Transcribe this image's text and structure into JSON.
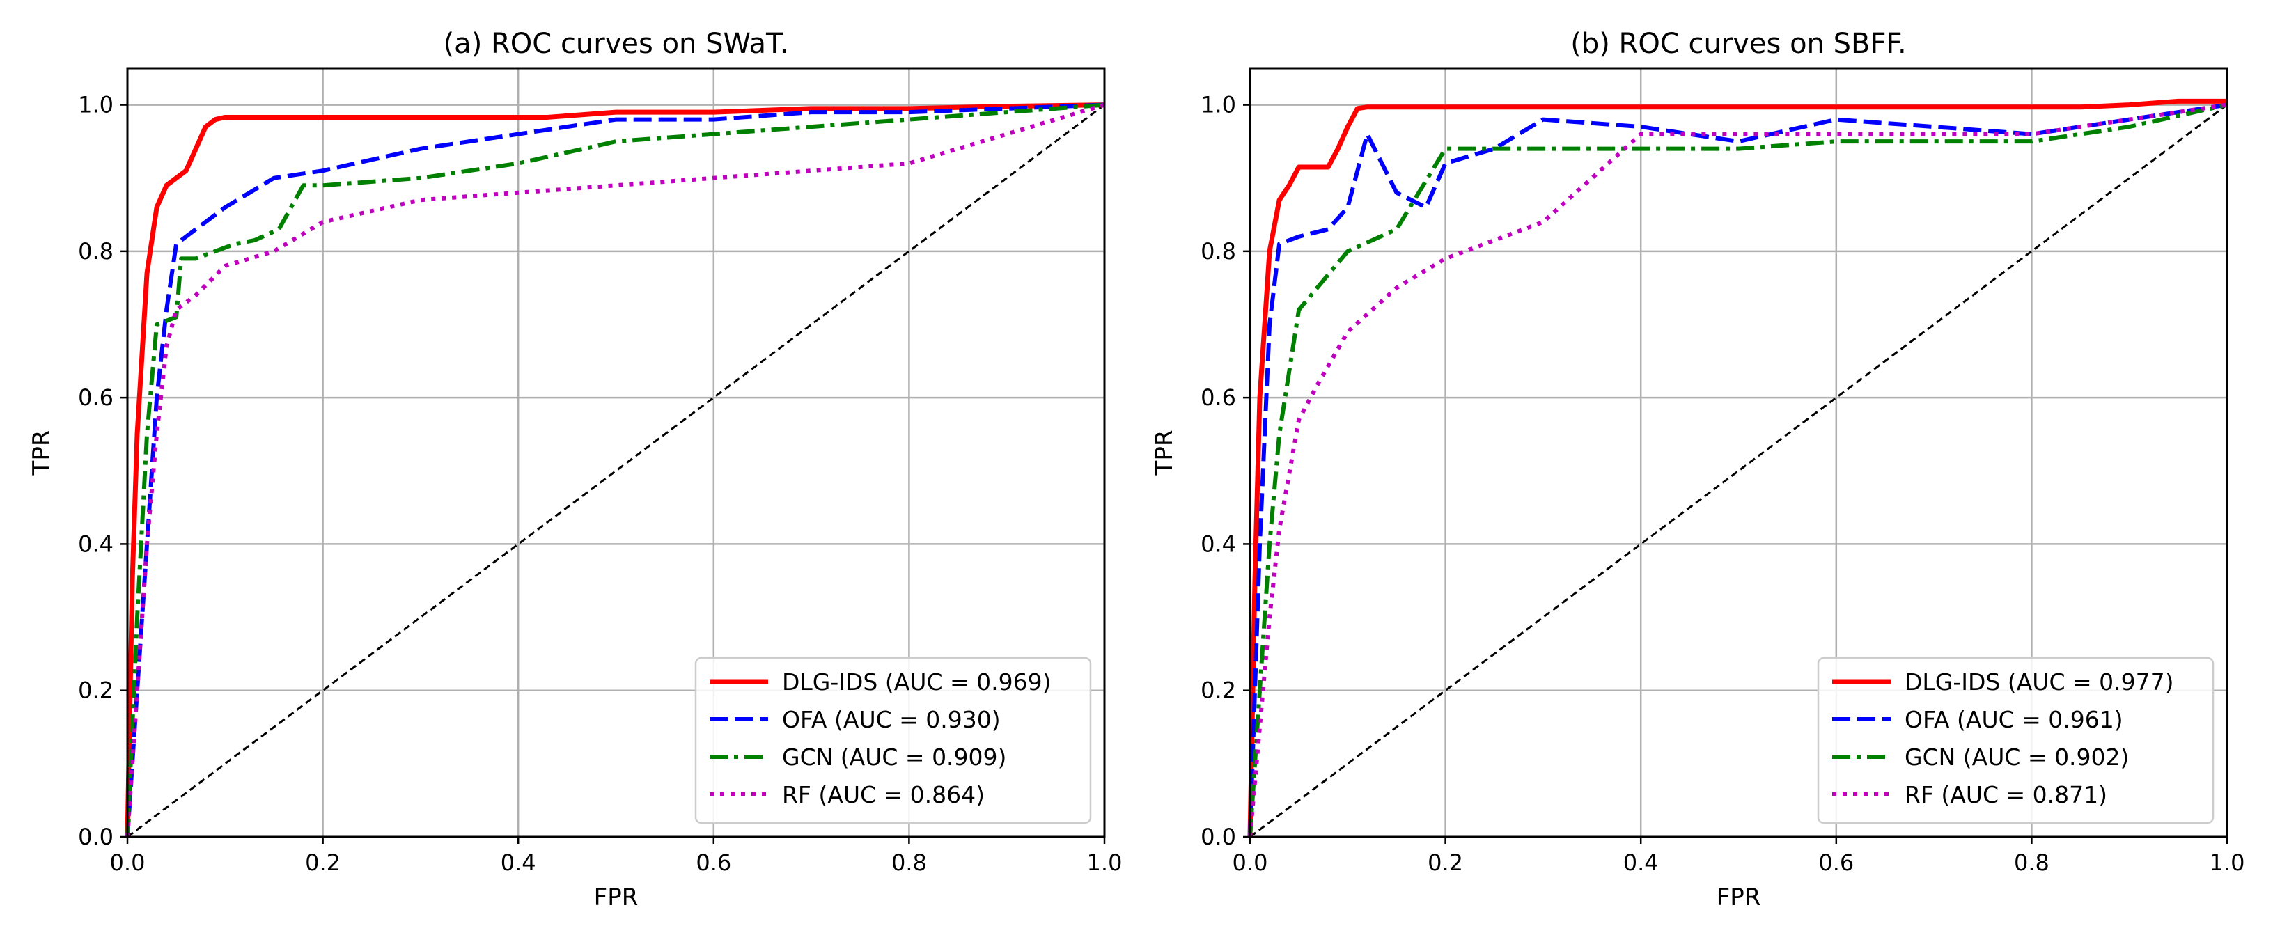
{
  "chart_data": [
    {
      "type": "line",
      "title": "(a) ROC curves on SWaT.",
      "xlabel": "FPR",
      "ylabel": "TPR",
      "xlim": [
        0,
        1
      ],
      "ylim": [
        0,
        1.05
      ],
      "xticks": [
        "0.0",
        "0.2",
        "0.4",
        "0.6",
        "0.8",
        "1.0"
      ],
      "yticks": [
        "0.0",
        "0.2",
        "0.4",
        "0.6",
        "0.8",
        "1.0"
      ],
      "grid": true,
      "legend_position": "lower-right",
      "diagonal": {
        "x": [
          0,
          1
        ],
        "y": [
          0,
          1
        ],
        "color": "#000000",
        "style": "dashed"
      },
      "series": [
        {
          "name": "DLG-IDS (AUC = 0.969)",
          "color": "#ff0000",
          "style": "solid",
          "x": [
            0,
            0.005,
            0.01,
            0.02,
            0.03,
            0.04,
            0.05,
            0.06,
            0.07,
            0.08,
            0.09,
            0.1,
            0.12,
            0.2,
            0.3,
            0.43,
            0.5,
            0.6,
            0.7,
            0.8,
            0.9,
            1.0
          ],
          "y": [
            0,
            0.35,
            0.55,
            0.77,
            0.86,
            0.89,
            0.9,
            0.91,
            0.94,
            0.97,
            0.98,
            0.983,
            0.983,
            0.983,
            0.983,
            0.983,
            0.99,
            0.99,
            0.995,
            0.995,
            0.998,
            1.0
          ]
        },
        {
          "name": "OFA (AUC = 0.930)",
          "color": "#0000ff",
          "style": "dashed",
          "x": [
            0,
            0.01,
            0.02,
            0.03,
            0.04,
            0.05,
            0.08,
            0.1,
            0.15,
            0.2,
            0.3,
            0.4,
            0.5,
            0.6,
            0.7,
            0.8,
            0.9,
            1.0
          ],
          "y": [
            0,
            0.2,
            0.4,
            0.6,
            0.72,
            0.81,
            0.84,
            0.86,
            0.9,
            0.91,
            0.94,
            0.96,
            0.98,
            0.98,
            0.99,
            0.99,
            0.995,
            1.0
          ]
        },
        {
          "name": "GCN (AUC = 0.909)",
          "color": "#008000",
          "style": "dashdot",
          "x": [
            0,
            0.01,
            0.02,
            0.03,
            0.05,
            0.055,
            0.07,
            0.09,
            0.11,
            0.13,
            0.155,
            0.18,
            0.2,
            0.3,
            0.4,
            0.5,
            0.6,
            0.7,
            0.8,
            0.9,
            0.95,
            1.0
          ],
          "y": [
            0,
            0.3,
            0.55,
            0.7,
            0.71,
            0.79,
            0.79,
            0.8,
            0.81,
            0.815,
            0.83,
            0.89,
            0.89,
            0.9,
            0.92,
            0.95,
            0.96,
            0.97,
            0.98,
            0.99,
            0.995,
            1.0
          ]
        },
        {
          "name": "RF (AUC = 0.864)",
          "color": "#bf00bf",
          "style": "dotted",
          "x": [
            0,
            0.01,
            0.02,
            0.03,
            0.04,
            0.05,
            0.07,
            0.1,
            0.15,
            0.2,
            0.3,
            0.4,
            0.5,
            0.6,
            0.7,
            0.8,
            0.9,
            1.0
          ],
          "y": [
            0,
            0.2,
            0.4,
            0.55,
            0.67,
            0.72,
            0.74,
            0.78,
            0.8,
            0.84,
            0.87,
            0.88,
            0.89,
            0.9,
            0.91,
            0.92,
            0.96,
            1.0
          ]
        }
      ]
    },
    {
      "type": "line",
      "title": "(b) ROC curves on SBFF.",
      "xlabel": "FPR",
      "ylabel": "TPR",
      "xlim": [
        0,
        1
      ],
      "ylim": [
        0,
        1.05
      ],
      "xticks": [
        "0.0",
        "0.2",
        "0.4",
        "0.6",
        "0.8",
        "1.0"
      ],
      "yticks": [
        "0.0",
        "0.2",
        "0.4",
        "0.6",
        "0.8",
        "1.0"
      ],
      "grid": true,
      "legend_position": "lower-right",
      "diagonal": {
        "x": [
          0,
          1
        ],
        "y": [
          0,
          1
        ],
        "color": "#000000",
        "style": "dashed"
      },
      "series": [
        {
          "name": "DLG-IDS (AUC = 0.977)",
          "color": "#ff0000",
          "style": "solid",
          "x": [
            0,
            0.005,
            0.01,
            0.02,
            0.03,
            0.04,
            0.05,
            0.07,
            0.08,
            0.09,
            0.1,
            0.11,
            0.12,
            0.2,
            0.4,
            0.6,
            0.8,
            0.85,
            0.9,
            0.95,
            1.0
          ],
          "y": [
            0,
            0.35,
            0.6,
            0.8,
            0.87,
            0.89,
            0.915,
            0.915,
            0.915,
            0.94,
            0.97,
            0.995,
            0.997,
            0.997,
            0.997,
            0.997,
            0.997,
            0.997,
            1.0,
            1.005,
            1.005
          ]
        },
        {
          "name": "OFA (AUC = 0.961)",
          "color": "#0000ff",
          "style": "dashed",
          "x": [
            0,
            0.01,
            0.02,
            0.03,
            0.05,
            0.08,
            0.1,
            0.12,
            0.15,
            0.18,
            0.2,
            0.25,
            0.3,
            0.4,
            0.5,
            0.6,
            0.7,
            0.8,
            0.9,
            1.0
          ],
          "y": [
            0,
            0.4,
            0.7,
            0.81,
            0.82,
            0.83,
            0.86,
            0.96,
            0.88,
            0.86,
            0.92,
            0.94,
            0.98,
            0.97,
            0.95,
            0.98,
            0.97,
            0.96,
            0.98,
            1.0
          ]
        },
        {
          "name": "GCN (AUC = 0.902)",
          "color": "#008000",
          "style": "dashdot",
          "x": [
            0,
            0.01,
            0.02,
            0.03,
            0.05,
            0.1,
            0.15,
            0.2,
            0.3,
            0.4,
            0.5,
            0.6,
            0.7,
            0.8,
            0.9,
            1.0
          ],
          "y": [
            0,
            0.2,
            0.4,
            0.55,
            0.72,
            0.8,
            0.83,
            0.94,
            0.94,
            0.94,
            0.94,
            0.95,
            0.95,
            0.95,
            0.97,
            1.0
          ]
        },
        {
          "name": "RF (AUC = 0.871)",
          "color": "#bf00bf",
          "style": "dotted",
          "x": [
            0,
            0.01,
            0.02,
            0.03,
            0.05,
            0.07,
            0.1,
            0.15,
            0.2,
            0.3,
            0.35,
            0.4,
            0.5,
            0.6,
            0.7,
            0.8,
            0.9,
            1.0
          ],
          "y": [
            0,
            0.15,
            0.3,
            0.42,
            0.57,
            0.62,
            0.69,
            0.75,
            0.79,
            0.84,
            0.9,
            0.96,
            0.96,
            0.96,
            0.96,
            0.96,
            0.98,
            1.0
          ]
        }
      ]
    }
  ]
}
